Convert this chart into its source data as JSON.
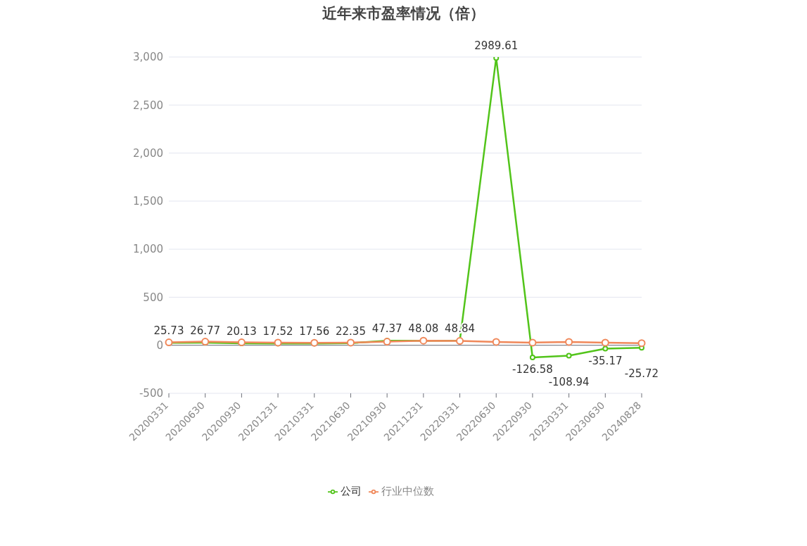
{
  "chart_data": {
    "type": "line",
    "title": "近年来市盈率情况（倍）",
    "categories": [
      "20200331",
      "20200630",
      "20200930",
      "20201231",
      "20210331",
      "20210630",
      "20210930",
      "20211231",
      "20220331",
      "20220630",
      "20220930",
      "20230331",
      "20230630",
      "20240828"
    ],
    "series": [
      {
        "name": "公司",
        "color": "#52c41a",
        "values": [
          25.73,
          26.77,
          20.13,
          17.52,
          17.56,
          22.35,
          47.37,
          48.08,
          48.84,
          2989.61,
          -126.58,
          -108.94,
          -35.17,
          -25.72
        ],
        "value_labels": [
          "25.73",
          "26.77",
          "20.13",
          "17.52",
          "17.56",
          "22.35",
          "47.37",
          "48.08",
          "48.84",
          "2989.61",
          "-126.58",
          "-108.94",
          "-35.17",
          "-25.72"
        ]
      },
      {
        "name": "行业中位数",
        "color": "#f0885a",
        "values": [
          30,
          38,
          30,
          28,
          26,
          28,
          38,
          48,
          45,
          35,
          28,
          35,
          28,
          22
        ]
      }
    ],
    "ylim": [
      -500,
      3000
    ],
    "yticks": [
      -500,
      0,
      500,
      {
        "value": 1000,
        "label": "1,000"
      },
      {
        "value": 1500,
        "label": "1,500"
      },
      {
        "value": 2000,
        "label": "2,000"
      },
      {
        "value": 2500,
        "label": "2,500"
      },
      {
        "value": 3000,
        "label": "3,000"
      }
    ],
    "grid": "y",
    "legend": "bottom",
    "marker": "circle",
    "line_style": "solid"
  }
}
